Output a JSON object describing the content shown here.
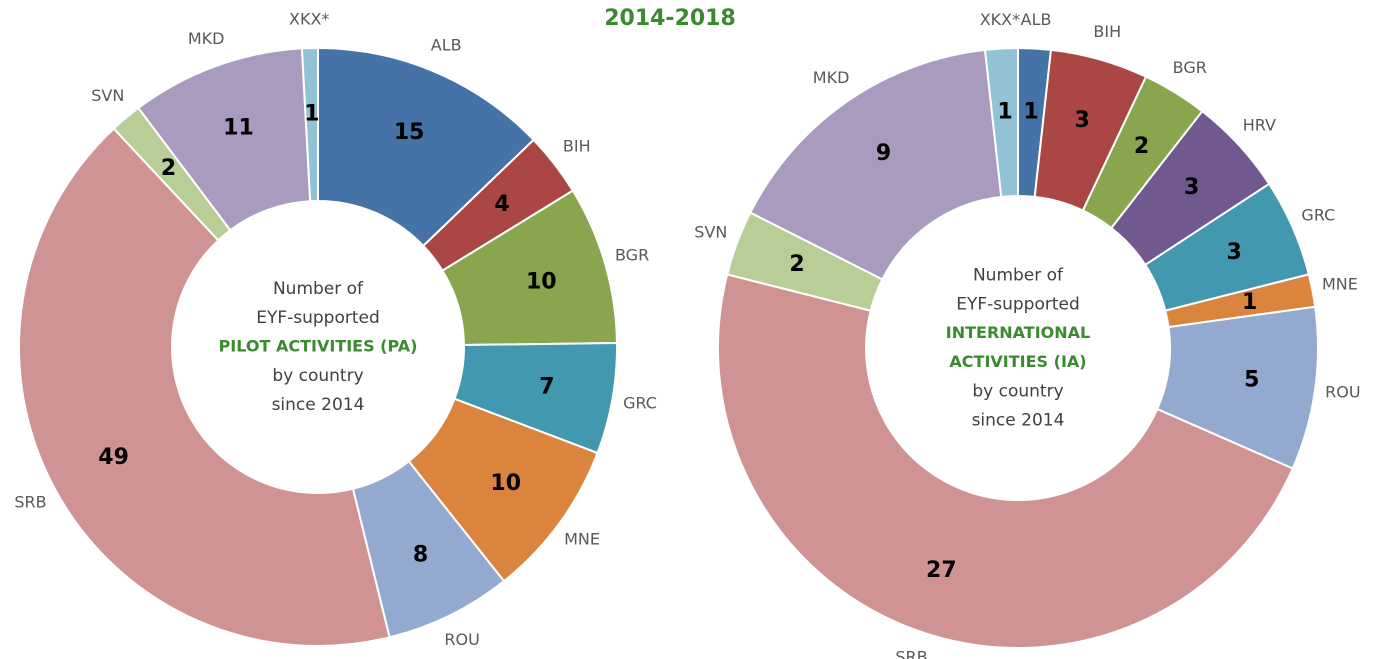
{
  "title": "2014-2018",
  "chart_data": [
    {
      "type": "pie",
      "categories": [
        "ALB",
        "BIH",
        "BGR",
        "GRC",
        "MNE",
        "ROU",
        "SRB",
        "SVN",
        "MKD",
        "XKX*"
      ],
      "values": [
        15,
        4,
        10,
        7,
        10,
        8,
        49,
        2,
        11,
        1
      ],
      "colors": [
        "#4572a7",
        "#aa4643",
        "#89a54e",
        "#4198af",
        "#db843d",
        "#93a9cf",
        "#d09393",
        "#b9cd96",
        "#a99bbd",
        "#92c3d4"
      ],
      "center_text": [
        {
          "text": "Number of"
        },
        {
          "text": "EYF-supported"
        },
        {
          "text": "PILOT ACTIVITIES (PA)",
          "emphasis": true
        },
        {
          "text": "by country"
        },
        {
          "text": "since 2014"
        }
      ]
    },
    {
      "type": "pie",
      "categories": [
        "ALB",
        "BIH",
        "BGR",
        "HRV",
        "GRC",
        "MNE",
        "ROU",
        "SRB",
        "SVN",
        "MKD",
        "XKX*"
      ],
      "values": [
        1,
        3,
        2,
        3,
        3,
        1,
        5,
        27,
        2,
        9,
        1
      ],
      "colors": [
        "#4572a7",
        "#aa4643",
        "#89a54e",
        "#71588f",
        "#4198af",
        "#db843d",
        "#93a9cf",
        "#d09393",
        "#b9cd96",
        "#a99bbd",
        "#92c3d4"
      ],
      "center_text": [
        {
          "text": "Number of"
        },
        {
          "text": "EYF-supported"
        },
        {
          "text": "INTERNATIONAL",
          "emphasis": true
        },
        {
          "text": "ACTIVITIES (IA)",
          "emphasis": true
        },
        {
          "text": "by country"
        },
        {
          "text": "since 2014"
        }
      ]
    }
  ]
}
